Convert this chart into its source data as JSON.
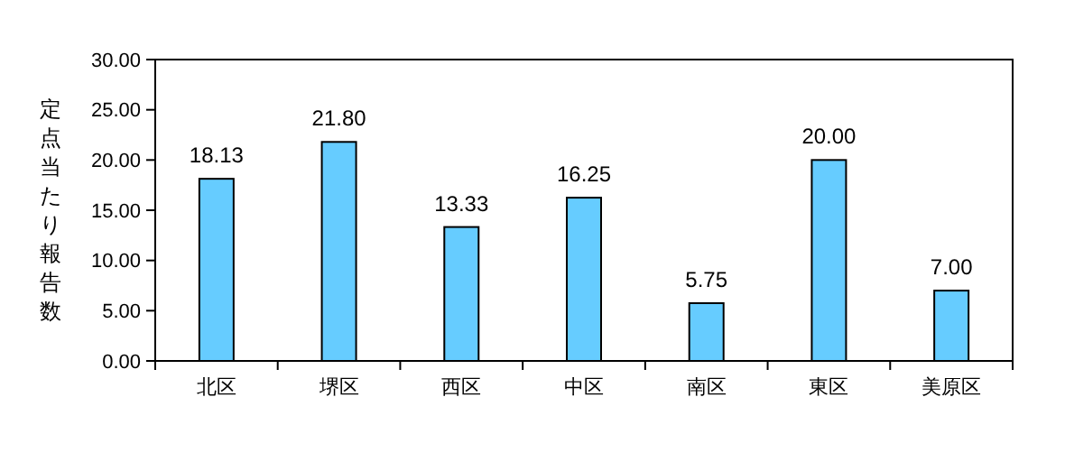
{
  "chart_data": {
    "type": "bar",
    "ylabel": "定点当たり報告数",
    "categories": [
      "北区",
      "堺区",
      "西区",
      "中区",
      "南区",
      "東区",
      "美原区"
    ],
    "values": [
      18.13,
      21.8,
      13.33,
      16.25,
      5.75,
      20,
      7
    ],
    "value_labels": [
      "18.13",
      "21.80",
      "13.33",
      "16.25",
      "5.75",
      "20.00",
      "7.00"
    ],
    "color": "#66ccff",
    "ylim": [
      0,
      30
    ],
    "yticks": [
      {
        "value": 0,
        "label": "0.00"
      },
      {
        "value": 5,
        "label": "5.00"
      },
      {
        "value": 10,
        "label": "10.00"
      },
      {
        "value": 15,
        "label": "15.00"
      },
      {
        "value": 20,
        "label": "20.00"
      },
      {
        "value": 25,
        "label": "25.00"
      },
      {
        "value": 30,
        "label": "30.00"
      }
    ],
    "grid": false
  }
}
